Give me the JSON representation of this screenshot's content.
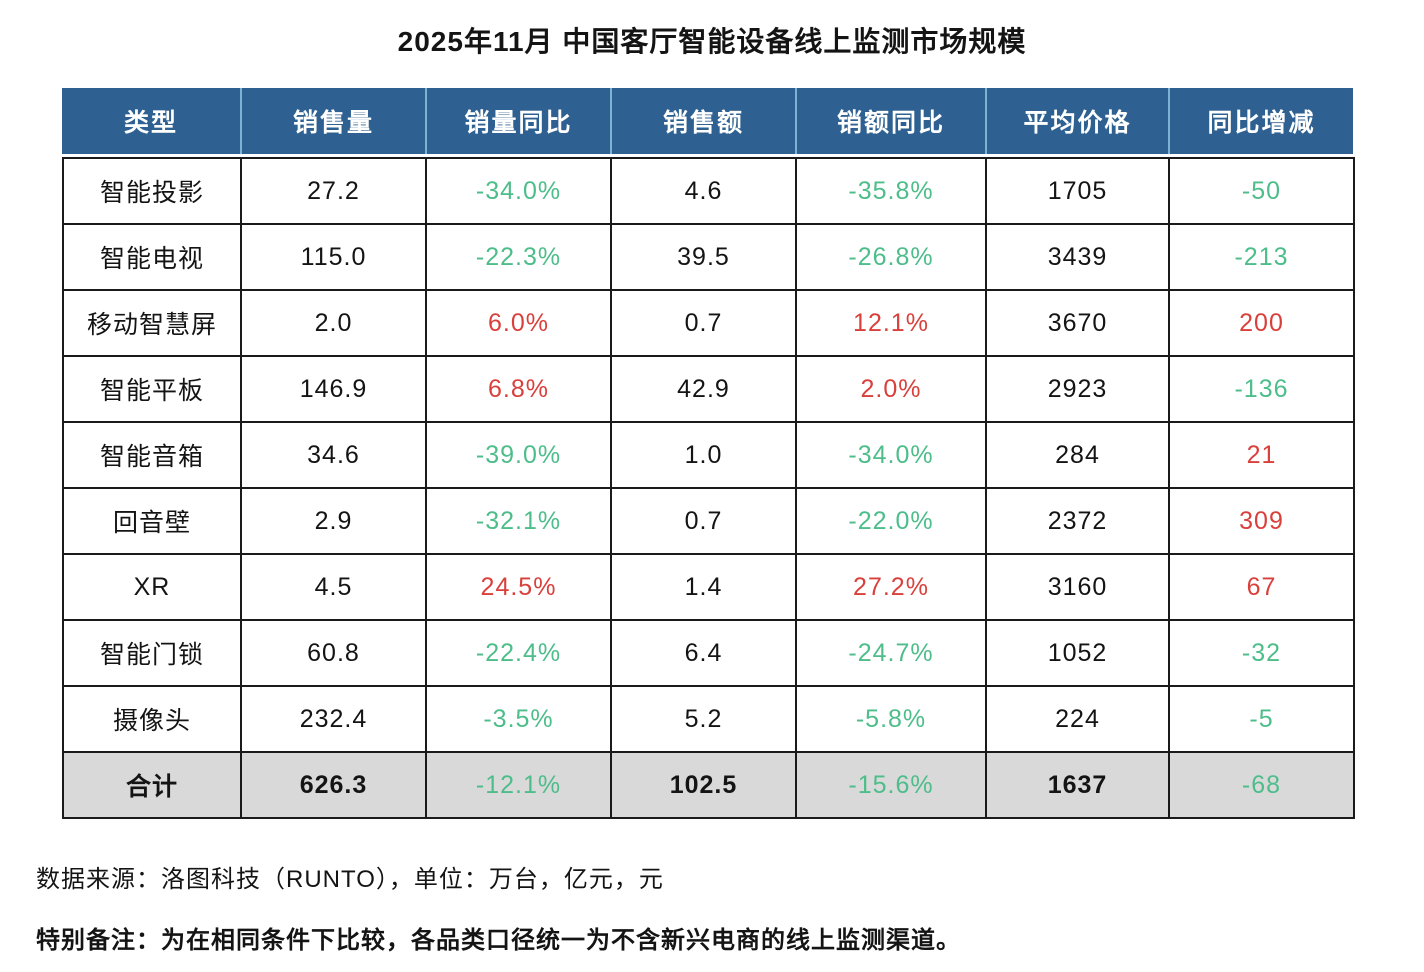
{
  "page": {
    "title": "2025年11月 中国客厅智能设备线上监测市场规模",
    "source_line": "数据来源：洛图科技（RUNTO），单位：万台，亿元，元",
    "note_line": "特别备注：为在相同条件下比较，各品类口径统一为不含新兴电商的线上监测渠道。"
  },
  "colors": {
    "header_bg": "#2E6191",
    "header_divider": "#7FB3D6",
    "negative_green": "#4DBD8A",
    "positive_red": "#D9403C",
    "total_row_bg": "#D9D9D9",
    "grid_border": "#1A1A1A"
  },
  "chart_data": {
    "type": "table",
    "title": "2025年11月 中国客厅智能设备线上监测市场规模",
    "columns": [
      "类型",
      "销售量",
      "销量同比",
      "销售额",
      "销额同比",
      "平均价格",
      "同比增减"
    ],
    "yoy_column_indexes": [
      2,
      4,
      6
    ],
    "rows": [
      [
        "智能投影",
        "27.2",
        "-34.0%",
        "4.6",
        "-35.8%",
        "1705",
        "-50"
      ],
      [
        "智能电视",
        "115.0",
        "-22.3%",
        "39.5",
        "-26.8%",
        "3439",
        "-213"
      ],
      [
        "移动智慧屏",
        "2.0",
        "6.0%",
        "0.7",
        "12.1%",
        "3670",
        "200"
      ],
      [
        "智能平板",
        "146.9",
        "6.8%",
        "42.9",
        "2.0%",
        "2923",
        "-136"
      ],
      [
        "智能音箱",
        "34.6",
        "-39.0%",
        "1.0",
        "-34.0%",
        "284",
        "21"
      ],
      [
        "回音壁",
        "2.9",
        "-32.1%",
        "0.7",
        "-22.0%",
        "2372",
        "309"
      ],
      [
        "XR",
        "4.5",
        "24.5%",
        "1.4",
        "27.2%",
        "3160",
        "67"
      ],
      [
        "智能门锁",
        "60.8",
        "-22.4%",
        "6.4",
        "-24.7%",
        "1052",
        "-32"
      ],
      [
        "摄像头",
        "232.4",
        "-3.5%",
        "5.2",
        "-5.8%",
        "224",
        "-5"
      ],
      [
        "合计",
        "626.3",
        "-12.1%",
        "102.5",
        "-15.6%",
        "1637",
        "-68"
      ]
    ],
    "total_row_index": 9,
    "units": "万台，亿元，元",
    "source": "洛图科技（RUNTO）",
    "note": "为在相同条件下比较，各品类口径统一为不含新兴电商的线上监测渠道。"
  }
}
